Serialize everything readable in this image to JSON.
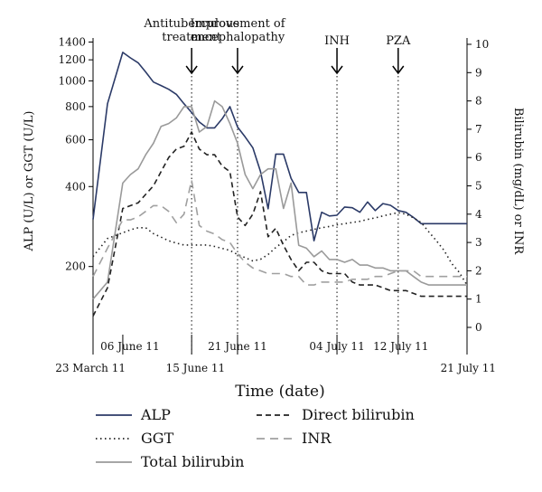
{
  "chart_data": {
    "type": "line",
    "xlabel": "Time (date)",
    "ylabel_left": "ALP (U/L) or GGT (U/L)",
    "ylabel_right": "Bilirubin (mg/dL) or INR",
    "y_left": {
      "scale": "log",
      "range": [
        118,
        1450
      ],
      "ticks": [
        "200",
        "400",
        "600",
        "800",
        "1000",
        "1200",
        "1400"
      ],
      "tick_values": [
        200,
        400,
        600,
        800,
        1000,
        1200,
        1400
      ]
    },
    "y_right": {
      "scale": "linear",
      "range": [
        0,
        10
      ],
      "ticks": [
        "0",
        "1",
        "2",
        "3",
        "4",
        "5",
        "6",
        "7",
        "8",
        "9",
        "10"
      ],
      "tick_values": [
        0,
        1,
        2,
        3,
        4,
        5,
        6,
        7,
        8,
        9,
        10
      ]
    },
    "x_range": [
      "2011-03-23",
      "2011-07-21"
    ],
    "x_ticks": [
      {
        "date": "2011-03-23",
        "label": "23 March 11",
        "row": 2
      },
      {
        "date": "2011-06-06",
        "label": "06 June 11",
        "row": 1
      },
      {
        "date": "2011-06-15",
        "label": "15 June 11",
        "row": 2
      },
      {
        "date": "2011-06-21",
        "label": "21 June 11",
        "row": 1
      },
      {
        "date": "2011-07-04",
        "label": "04 July 11",
        "row": 1
      },
      {
        "date": "2011-07-12",
        "label": "12 July 11",
        "row": 1
      },
      {
        "date": "2011-07-21",
        "label": "21 July 11",
        "row": 2
      }
    ],
    "annotations": [
      {
        "date": "2011-06-15",
        "text": [
          "Antituberculous",
          "treatment"
        ]
      },
      {
        "date": "2011-06-21",
        "text": [
          "Improvement of",
          "encephalopathy"
        ]
      },
      {
        "date": "2011-07-04",
        "text": [
          "INH"
        ]
      },
      {
        "date": "2011-07-12",
        "text": [
          "PZA"
        ]
      }
    ],
    "x": [
      "2011-03-23",
      "2011-06-04",
      "2011-06-06",
      "2011-06-07",
      "2011-06-08",
      "2011-06-09",
      "2011-06-10",
      "2011-06-11",
      "2011-06-12",
      "2011-06-13",
      "2011-06-14",
      "2011-06-15",
      "2011-06-16",
      "2011-06-17",
      "2011-06-18",
      "2011-06-19",
      "2011-06-20",
      "2011-06-21",
      "2011-06-22",
      "2011-06-23",
      "2011-06-24",
      "2011-06-25",
      "2011-06-26",
      "2011-06-27",
      "2011-06-28",
      "2011-06-29",
      "2011-06-30",
      "2011-07-01",
      "2011-07-02",
      "2011-07-03",
      "2011-07-04",
      "2011-07-05",
      "2011-07-06",
      "2011-07-07",
      "2011-07-08",
      "2011-07-09",
      "2011-07-10",
      "2011-07-11",
      "2011-07-12",
      "2011-07-13",
      "2011-07-14",
      "2011-07-15",
      "2011-07-16",
      "2011-07-17",
      "2011-07-18",
      "2011-07-19",
      "2011-07-20",
      "2011-07-21"
    ],
    "series": [
      {
        "name": "ALP",
        "axis": "left",
        "color": "#2b3a67",
        "dash": "none",
        "values": [
          301,
          820,
          1280,
          1220,
          1170,
          1080,
          990,
          960,
          930,
          890,
          820,
          760,
          700,
          665,
          665,
          720,
          800,
          670,
          615,
          560,
          455,
          330,
          530,
          530,
          430,
          380,
          380,
          250,
          320,
          310,
          312,
          335,
          333,
          320,
          350,
          325,
          345,
          340,
          325,
          320,
          306,
          290,
          290,
          290,
          290,
          290,
          290,
          290
        ]
      },
      {
        "name": "GGT",
        "axis": "left",
        "color": "#222222",
        "dash": "dot",
        "values": [
          218,
          255,
          268,
          275,
          280,
          280,
          266,
          258,
          250,
          245,
          241,
          241,
          241,
          241,
          238,
          234,
          230,
          222,
          216,
          210,
          213,
          222,
          236,
          248,
          262,
          268,
          272,
          276,
          280,
          283,
          287,
          290,
          293,
          296,
          301,
          305,
          310,
          315,
          319,
          315,
          305,
          293,
          270,
          250,
          230,
          205,
          190,
          170
        ]
      },
      {
        "name": "Total bilirubin",
        "axis": "right",
        "color": "#9a9a9a",
        "dash": "none",
        "values": [
          1.0,
          1.6,
          5.1,
          5.4,
          5.6,
          6.1,
          6.5,
          7.1,
          7.2,
          7.4,
          7.8,
          7.8,
          6.9,
          7.1,
          8.0,
          7.8,
          7.2,
          6.5,
          5.4,
          4.9,
          5.4,
          5.6,
          5.6,
          4.2,
          5.1,
          2.9,
          2.8,
          2.5,
          2.7,
          2.4,
          2.4,
          2.3,
          2.4,
          2.2,
          2.2,
          2.1,
          2.1,
          2.0,
          2.0,
          2.0,
          1.8,
          1.6,
          1.5,
          1.5,
          1.5,
          1.5,
          1.5,
          1.5
        ]
      },
      {
        "name": "Direct bilirubin",
        "axis": "right",
        "color": "#222222",
        "dash": "dash",
        "values": [
          0.4,
          1.4,
          4.2,
          4.3,
          4.4,
          4.7,
          5.0,
          5.5,
          6.0,
          6.3,
          6.4,
          6.9,
          6.3,
          6.1,
          6.1,
          5.7,
          5.5,
          3.9,
          3.6,
          4.0,
          4.8,
          3.2,
          3.5,
          2.9,
          2.4,
          2.0,
          2.3,
          2.3,
          2.0,
          1.9,
          1.9,
          1.9,
          1.6,
          1.5,
          1.5,
          1.5,
          1.4,
          1.3,
          1.3,
          1.3,
          1.2,
          1.1,
          1.1,
          1.1,
          1.1,
          1.1,
          1.1,
          1.1
        ]
      },
      {
        "name": "INR",
        "axis": "right",
        "color": "#a0a0a0",
        "dash": "longdash",
        "values": [
          1.8,
          2.8,
          3.8,
          3.8,
          3.9,
          4.1,
          4.3,
          4.3,
          4.1,
          3.7,
          4.0,
          5.2,
          3.6,
          3.4,
          3.3,
          3.1,
          3.0,
          2.6,
          2.3,
          2.1,
          2.0,
          1.9,
          1.9,
          1.9,
          1.8,
          1.8,
          1.5,
          1.5,
          1.6,
          1.6,
          1.6,
          1.6,
          1.7,
          1.7,
          1.7,
          1.8,
          1.8,
          1.9,
          2.0,
          2.0,
          2.0,
          1.8,
          1.8,
          1.8,
          1.8,
          1.8,
          1.8,
          1.8
        ]
      }
    ],
    "legend": {
      "placement": "bottom",
      "items": [
        {
          "label": "ALP",
          "color": "#2b3a67",
          "dash": "none"
        },
        {
          "label": "Direct bilirubin",
          "color": "#222222",
          "dash": "dash"
        },
        {
          "label": "GGT",
          "color": "#222222",
          "dash": "dot"
        },
        {
          "label": "INR",
          "color": "#a0a0a0",
          "dash": "longdash"
        },
        {
          "label": "Total bilirubin",
          "color": "#9a9a9a",
          "dash": "none"
        }
      ]
    }
  }
}
